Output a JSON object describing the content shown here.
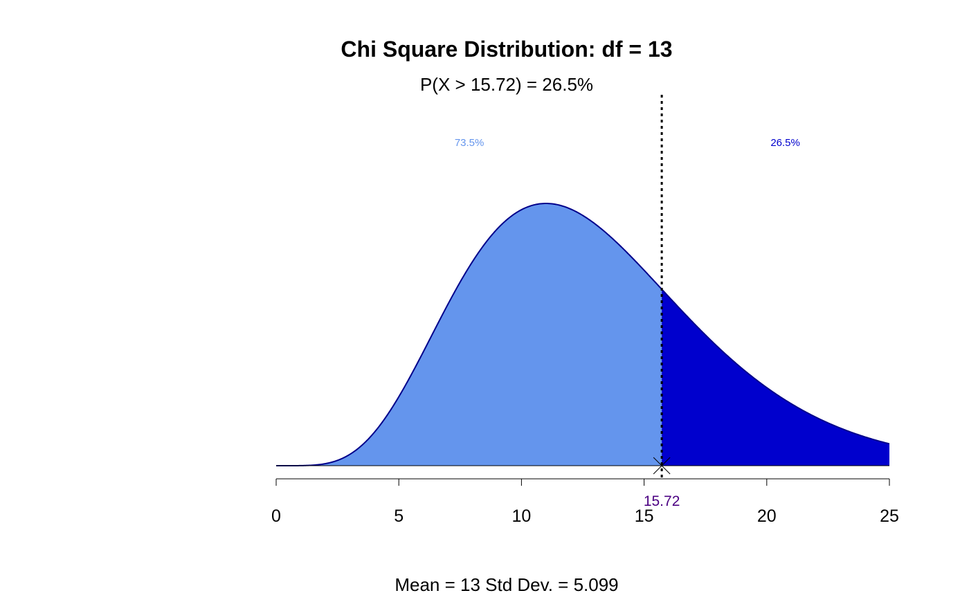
{
  "chart_data": {
    "type": "area",
    "title": "Chi Square Distribution: df = 13",
    "subtitle": "P(X > 15.72) = 26.5%",
    "distribution": "chi-square",
    "df": 13,
    "critical_value": 15.72,
    "critical_value_label": "15.72",
    "xlim": [
      0,
      25
    ],
    "x_ticks": [
      0,
      5,
      10,
      15,
      20,
      25
    ],
    "x_tick_labels": [
      "0",
      "5",
      "10",
      "15",
      "20",
      "25"
    ],
    "regions": [
      {
        "name": "left",
        "label": "73.5%",
        "probability": 0.735,
        "color": "#6495ED"
      },
      {
        "name": "right",
        "label": "26.5%",
        "probability": 0.265,
        "color": "#0000CD"
      }
    ],
    "footer": "Mean = 13  Std Dev. = 5.099",
    "grid": false,
    "colors": {
      "curve_outline": "#00008B",
      "marker_label": "#4B0082",
      "axis": "#000000"
    }
  }
}
